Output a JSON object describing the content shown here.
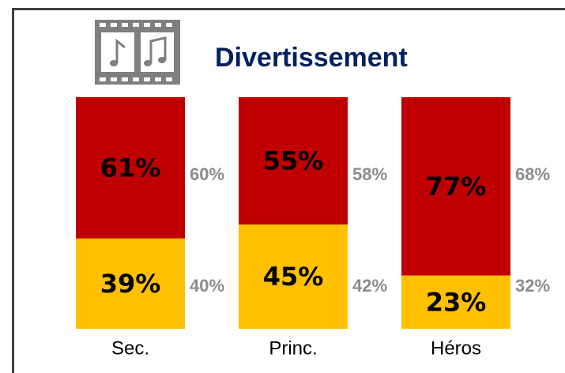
{
  "chart_data": {
    "type": "bar",
    "stacked": true,
    "title": "Divertissement",
    "categories": [
      "Sec.",
      "Princ.",
      "Héros"
    ],
    "series": [
      {
        "color": "#ffc000",
        "values": [
          39,
          45,
          23
        ],
        "value_labels": [
          "39%",
          "45%",
          "23%"
        ],
        "reference_labels": [
          "40%",
          "42%",
          "32%"
        ]
      },
      {
        "color": "#c00000",
        "values": [
          61,
          55,
          77
        ],
        "value_labels": [
          "61%",
          "55%",
          "77%"
        ],
        "reference_labels": [
          "60%",
          "58%",
          "68%"
        ]
      }
    ],
    "ylim": [
      0,
      100
    ]
  }
}
